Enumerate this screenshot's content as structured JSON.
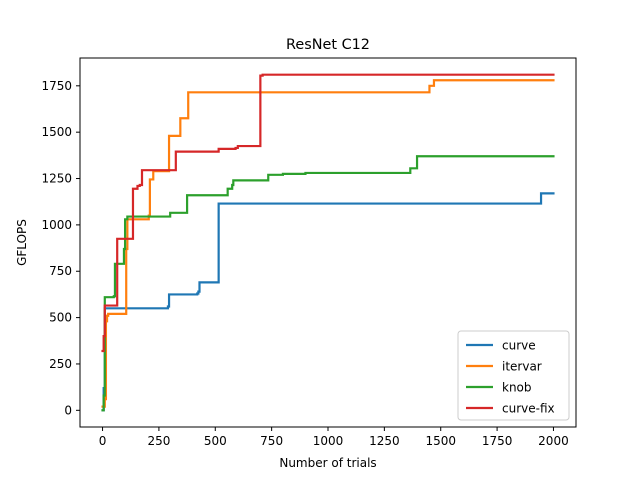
{
  "chart_data": {
    "type": "line",
    "step": true,
    "title": "ResNet C12",
    "xlabel": "Number of trials",
    "ylabel": "GFLOPS",
    "xlim": [
      -100,
      2100
    ],
    "ylim": [
      -90,
      1900
    ],
    "xticks": [
      0,
      250,
      500,
      750,
      1000,
      1250,
      1500,
      1750,
      2000
    ],
    "yticks": [
      0,
      250,
      500,
      750,
      1000,
      1250,
      1500,
      1750
    ],
    "grid": false,
    "legend_position": "lower-right",
    "series": [
      {
        "name": "curve",
        "color": "#1f77b4",
        "points": [
          [
            0,
            0
          ],
          [
            5,
            120
          ],
          [
            10,
            550
          ],
          [
            290,
            560
          ],
          [
            295,
            625
          ],
          [
            420,
            630
          ],
          [
            425,
            640
          ],
          [
            430,
            690
          ],
          [
            510,
            690
          ],
          [
            515,
            1115
          ],
          [
            1940,
            1115
          ],
          [
            1945,
            1170
          ],
          [
            2000,
            1170
          ]
        ]
      },
      {
        "name": "itervar",
        "color": "#ff7f0e",
        "points": [
          [
            0,
            20
          ],
          [
            10,
            60
          ],
          [
            15,
            480
          ],
          [
            20,
            510
          ],
          [
            25,
            520
          ],
          [
            100,
            520
          ],
          [
            105,
            870
          ],
          [
            110,
            1030
          ],
          [
            200,
            1030
          ],
          [
            205,
            1050
          ],
          [
            210,
            1245
          ],
          [
            225,
            1290
          ],
          [
            290,
            1290
          ],
          [
            295,
            1480
          ],
          [
            340,
            1480
          ],
          [
            345,
            1575
          ],
          [
            375,
            1575
          ],
          [
            380,
            1715
          ],
          [
            1445,
            1715
          ],
          [
            1450,
            1750
          ],
          [
            1465,
            1750
          ],
          [
            1470,
            1780
          ],
          [
            2000,
            1780
          ]
        ]
      },
      {
        "name": "knob",
        "color": "#2ca02c",
        "points": [
          [
            0,
            0
          ],
          [
            5,
            80
          ],
          [
            10,
            610
          ],
          [
            50,
            615
          ],
          [
            55,
            790
          ],
          [
            90,
            790
          ],
          [
            95,
            870
          ],
          [
            100,
            1030
          ],
          [
            110,
            1045
          ],
          [
            295,
            1045
          ],
          [
            300,
            1065
          ],
          [
            370,
            1065
          ],
          [
            375,
            1160
          ],
          [
            550,
            1160
          ],
          [
            555,
            1195
          ],
          [
            570,
            1195
          ],
          [
            575,
            1215
          ],
          [
            580,
            1240
          ],
          [
            730,
            1240
          ],
          [
            735,
            1270
          ],
          [
            800,
            1275
          ],
          [
            900,
            1280
          ],
          [
            1360,
            1280
          ],
          [
            1365,
            1305
          ],
          [
            1390,
            1305
          ],
          [
            1395,
            1370
          ],
          [
            2000,
            1370
          ]
        ]
      },
      {
        "name": "curve-fix",
        "color": "#d62728",
        "points": [
          [
            0,
            320
          ],
          [
            5,
            400
          ],
          [
            10,
            565
          ],
          [
            60,
            565
          ],
          [
            65,
            925
          ],
          [
            130,
            925
          ],
          [
            135,
            1195
          ],
          [
            155,
            1210
          ],
          [
            165,
            1215
          ],
          [
            175,
            1295
          ],
          [
            320,
            1295
          ],
          [
            325,
            1395
          ],
          [
            510,
            1395
          ],
          [
            515,
            1410
          ],
          [
            590,
            1415
          ],
          [
            600,
            1425
          ],
          [
            695,
            1425
          ],
          [
            700,
            1805
          ],
          [
            710,
            1810
          ],
          [
            2000,
            1810
          ]
        ]
      }
    ]
  }
}
